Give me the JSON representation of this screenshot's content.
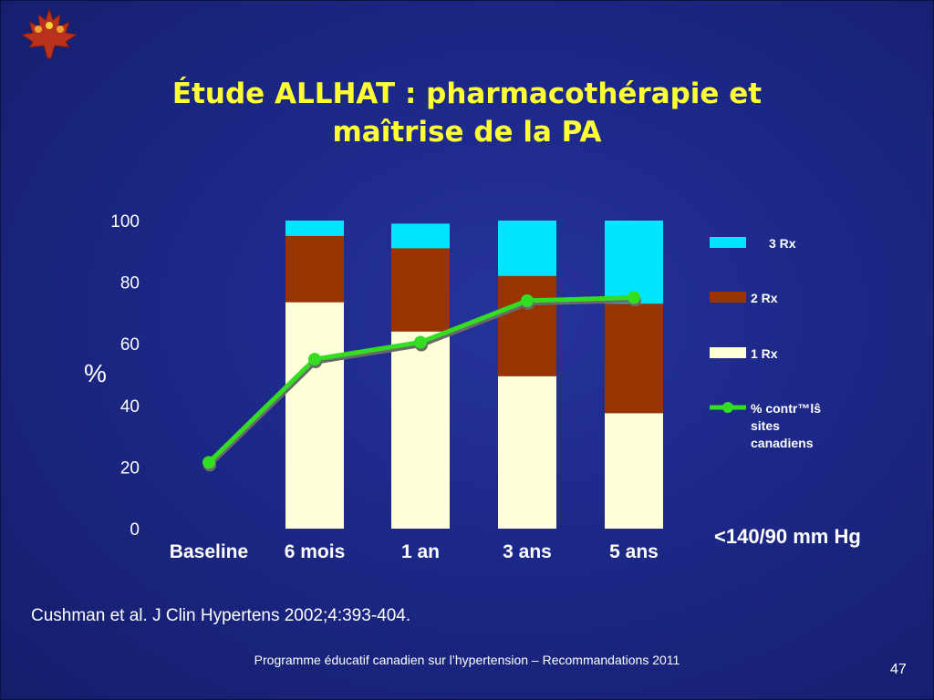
{
  "slide": {
    "title_line1": "Étude ALLHAT : pharmacothérapie et",
    "title_line2": "maîtrise de la PA",
    "reference": "Cushman et al. J Clin Hypertens 2002;4:393-404.",
    "footer": "Programme éducatif canadien sur l’hypertension – Recommandations 2011",
    "page_number": "47",
    "threshold_label": "<140/90 mm Hg",
    "logo": "maple-leaf-icon"
  },
  "chart_data": {
    "type": "bar",
    "stacked": true,
    "categories": [
      "Baseline",
      "6 mois",
      "1 an",
      "3 ans",
      "5 ans"
    ],
    "ylabel": "%",
    "ylim": [
      0,
      100
    ],
    "yticks": [
      "0",
      "20",
      "40",
      "60",
      "80",
      "100"
    ],
    "grid": false,
    "legend_position": "right",
    "series": [
      {
        "name": "1 Rx",
        "type": "bar",
        "color": "#ffffd8",
        "values": [
          null,
          73.5,
          64,
          49.5,
          37.5
        ]
      },
      {
        "name": "2 Rx",
        "type": "bar",
        "color": "#993300",
        "values": [
          null,
          21.5,
          27,
          32.5,
          35.5
        ]
      },
      {
        "name": "3 Rx",
        "type": "bar",
        "color": "#00e5ff",
        "values": [
          null,
          5,
          8,
          18,
          27
        ]
      },
      {
        "name": "% contr™lŝ sites canadiens",
        "type": "line",
        "color": "#33dd22",
        "values": [
          21.5,
          55,
          60.5,
          74,
          75
        ]
      }
    ],
    "legend_lines": [
      [
        "3 Rx"
      ],
      [
        "2 Rx"
      ],
      [
        "1 Rx"
      ],
      [
        "% contr™lŝ",
        "sites",
        "canadiens"
      ]
    ]
  }
}
